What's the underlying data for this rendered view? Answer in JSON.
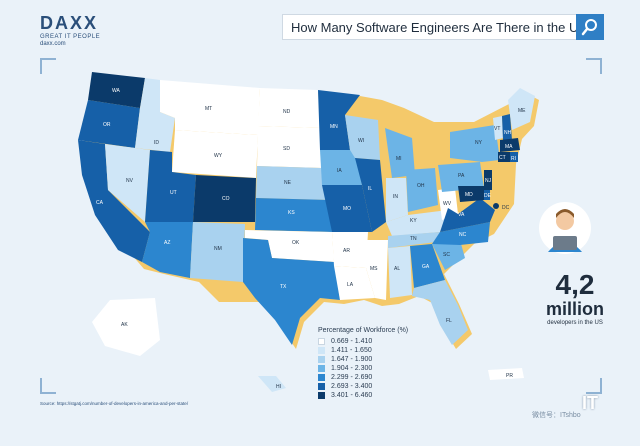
{
  "brand": {
    "name": "DAXX",
    "tagline": "GREAT IT PEOPLE",
    "site": "daxx.com"
  },
  "search": {
    "question": "How Many Software Engineers Are There in the US?"
  },
  "colors": {
    "c1": "#ffffff",
    "c2": "#cfe6f7",
    "c3": "#a9d2ef",
    "c4": "#6cb4e6",
    "c5": "#2c86cf",
    "c6": "#1660a8",
    "c7": "#0b3a6a"
  },
  "states": [
    "WA",
    "OR",
    "CA",
    "NV",
    "ID",
    "MT",
    "WY",
    "UT",
    "AZ",
    "CO",
    "NM",
    "ND",
    "SD",
    "NE",
    "KS",
    "OK",
    "TX",
    "MN",
    "IA",
    "MO",
    "AR",
    "LA",
    "WI",
    "IL",
    "MS",
    "MI",
    "IN",
    "KY",
    "TN",
    "AL",
    "OH",
    "WV",
    "GA",
    "FL",
    "SC",
    "NC",
    "VA",
    "PA",
    "NY",
    "VT",
    "NH",
    "ME",
    "MA",
    "CT",
    "RI",
    "NJ",
    "DE",
    "MD",
    "DC",
    "AK",
    "HI",
    "PR"
  ],
  "legend": {
    "title": "Percentage of Workforce (%)",
    "ranges": [
      "0.669 - 1.410",
      "1.411 - 1.650",
      "1.647 - 1.900",
      "1.904 - 2.300",
      "2.299 - 2.690",
      "2.693 - 3.400",
      "3.401 - 6.460"
    ]
  },
  "stat": {
    "value": "4,2",
    "unit": "million",
    "caption": "developers in the US"
  },
  "source": "Source: https://stgatj.com/number-of-developers-in-america-and-per-state/",
  "watermark": "微信号：ITshbo"
}
